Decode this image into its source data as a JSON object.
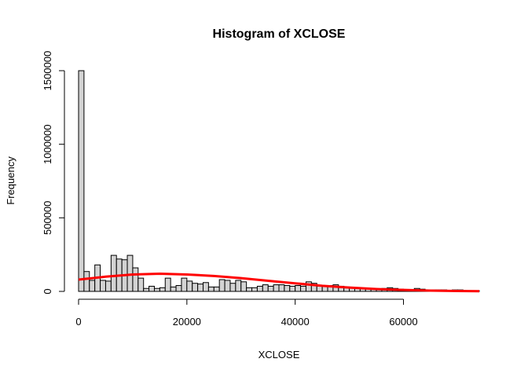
{
  "chart_data": {
    "type": "bar",
    "subtype": "histogram",
    "title": "Histogram of XCLOSE",
    "xlabel": "XCLOSE",
    "ylabel": "Frequency",
    "xlim": [
      0,
      74000
    ],
    "ylim": [
      0,
      1500000
    ],
    "xticks": [
      0,
      20000,
      40000,
      60000
    ],
    "yticks": [
      0,
      500000,
      1000000,
      1500000
    ],
    "bin_width": 1000,
    "bin_start": 0,
    "bar_fill": "#d3d3d3",
    "bar_stroke": "#000000",
    "frequencies": [
      1500000,
      135000,
      75000,
      180000,
      75000,
      70000,
      245000,
      220000,
      215000,
      245000,
      160000,
      90000,
      20000,
      35000,
      20000,
      25000,
      90000,
      30000,
      40000,
      90000,
      70000,
      55000,
      50000,
      60000,
      30000,
      30000,
      80000,
      75000,
      55000,
      75000,
      65000,
      25000,
      25000,
      35000,
      45000,
      35000,
      45000,
      45000,
      40000,
      35000,
      40000,
      35000,
      65000,
      55000,
      35000,
      35000,
      40000,
      45000,
      35000,
      30000,
      25000,
      25000,
      20000,
      20000,
      15000,
      15000,
      20000,
      25000,
      20000,
      15000,
      10000,
      10000,
      20000,
      15000,
      10000,
      10000,
      10000,
      10000,
      5000,
      10000,
      10000,
      5000,
      5000,
      5000
    ],
    "overlay": {
      "type": "line",
      "color": "#ff0000",
      "x": [
        0,
        5000,
        10000,
        15000,
        20000,
        25000,
        30000,
        35000,
        40000,
        45000,
        50000,
        55000,
        60000,
        65000,
        70000,
        74000
      ],
      "y": [
        80000,
        100000,
        115000,
        120000,
        115000,
        105000,
        90000,
        72000,
        55000,
        38000,
        26000,
        16000,
        10000,
        5000,
        2500,
        1500
      ]
    }
  }
}
